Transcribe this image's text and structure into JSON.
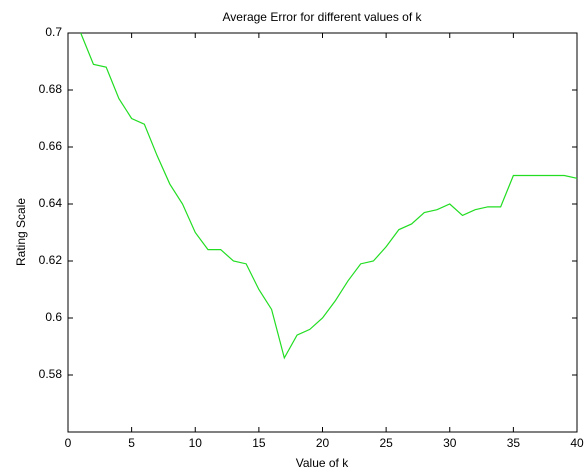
{
  "chart_data": {
    "type": "line",
    "title": "Average Error for different values of k",
    "x_label": "Value of k",
    "y_label": "Rating Scale",
    "x": [
      1,
      2,
      3,
      4,
      5,
      6,
      7,
      8,
      9,
      10,
      11,
      12,
      13,
      14,
      15,
      16,
      17,
      18,
      19,
      20,
      21,
      22,
      23,
      24,
      25,
      26,
      27,
      28,
      29,
      30,
      31,
      32,
      33,
      34,
      35,
      36,
      37,
      38,
      39,
      40
    ],
    "series": [
      {
        "color": "#22dd22",
        "values": [
          0.7,
          0.689,
          0.688,
          0.677,
          0.67,
          0.668,
          0.657,
          0.647,
          0.64,
          0.63,
          0.624,
          0.624,
          0.62,
          0.619,
          0.61,
          0.603,
          0.586,
          0.594,
          0.596,
          0.6,
          0.606,
          0.613,
          0.619,
          0.62,
          0.625,
          0.631,
          0.633,
          0.637,
          0.638,
          0.64,
          0.636,
          0.638,
          0.639,
          0.639,
          0.65,
          0.65,
          0.65,
          0.65,
          0.65,
          0.649
        ]
      }
    ],
    "xlim": [
      0,
      40
    ],
    "xticks": [
      0,
      5,
      10,
      15,
      20,
      25,
      30,
      35,
      40
    ],
    "ylim": [
      0.56,
      0.7
    ],
    "yticks": [
      0.58,
      0.6,
      0.62,
      0.64,
      0.66,
      0.68,
      0.7
    ]
  }
}
